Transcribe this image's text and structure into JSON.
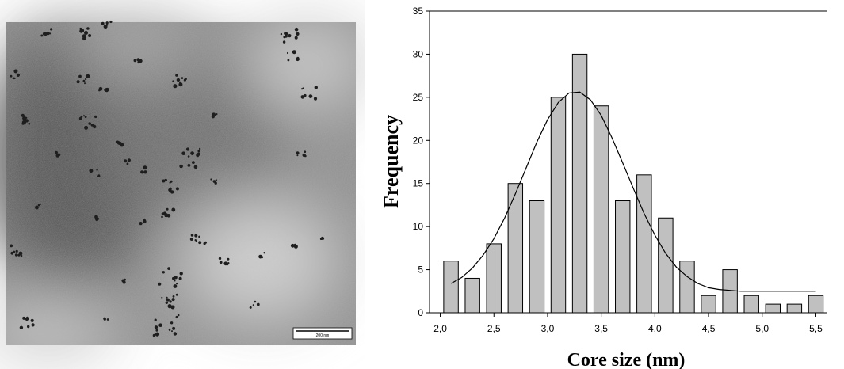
{
  "micrograph": {
    "scale_bar_label": "200 nm"
  },
  "chart_data": {
    "type": "bar",
    "xlabel": "Core size (nm)",
    "ylabel": "Frequency",
    "xlim": [
      1.9,
      5.6
    ],
    "ylim": [
      0,
      35
    ],
    "x_ticks": [
      "2,0",
      "2,5",
      "3,0",
      "3,5",
      "4,0",
      "4,5",
      "5,0",
      "5,5"
    ],
    "y_ticks": [
      "0",
      "5",
      "10",
      "15",
      "20",
      "25",
      "30",
      "35"
    ],
    "bin_width": 0.2,
    "x": [
      2.1,
      2.3,
      2.5,
      2.7,
      2.9,
      3.1,
      3.3,
      3.5,
      3.7,
      3.9,
      4.1,
      4.3,
      4.5,
      4.7,
      4.9,
      5.1,
      5.3,
      5.5
    ],
    "values": [
      6,
      4,
      8,
      15,
      13,
      25,
      30,
      24,
      13,
      16,
      11,
      6,
      2,
      5,
      2,
      1,
      1,
      2
    ],
    "bar_color": "#c0c0c0",
    "fit_curve": {
      "type": "gaussian",
      "x": [
        2.1,
        2.2,
        2.3,
        2.4,
        2.5,
        2.6,
        2.7,
        2.8,
        2.9,
        3.0,
        3.1,
        3.2,
        3.3,
        3.4,
        3.5,
        3.6,
        3.7,
        3.8,
        3.9,
        4.0,
        4.1,
        4.2,
        4.3,
        4.4,
        4.5,
        4.6,
        4.7,
        4.8,
        4.9,
        5.0,
        5.1,
        5.2,
        5.3,
        5.4,
        5.5
      ],
      "y": [
        3.4,
        4.1,
        5.2,
        6.7,
        8.6,
        11.0,
        13.8,
        16.8,
        19.8,
        22.4,
        24.4,
        25.5,
        25.6,
        24.7,
        22.9,
        20.3,
        17.4,
        14.4,
        11.5,
        9.0,
        6.9,
        5.3,
        4.2,
        3.4,
        2.9,
        2.7,
        2.6,
        2.5,
        2.5,
        2.5,
        2.5,
        2.5,
        2.5,
        2.5,
        2.5
      ]
    },
    "grid": false,
    "legend": "none"
  }
}
